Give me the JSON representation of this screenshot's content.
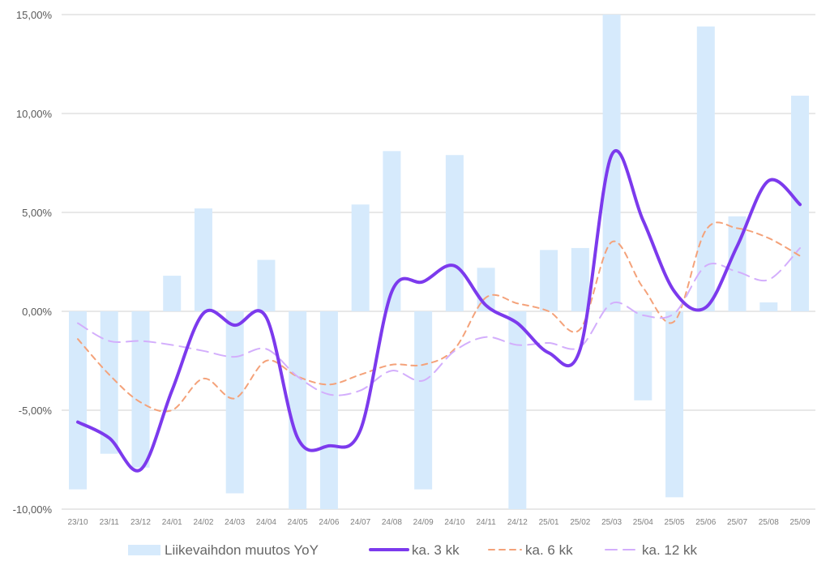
{
  "chart_data": {
    "type": "bar",
    "title": "",
    "xlabel": "",
    "ylabel": "",
    "ylim": [
      -10,
      15
    ],
    "yticks": [
      15,
      10,
      5,
      0,
      -5,
      -10
    ],
    "ytick_labels": [
      "15,00%",
      "10,00%",
      "5,00%",
      "0,00%",
      "-5,00%",
      "-10,00%"
    ],
    "grid": true,
    "legend_position": "bottom",
    "categories": [
      "23/10",
      "23/11",
      "23/12",
      "24/01",
      "24/02",
      "24/03",
      "24/04",
      "24/05",
      "24/06",
      "24/07",
      "24/08",
      "24/09",
      "24/10",
      "24/11",
      "24/12",
      "25/01",
      "25/02",
      "25/03",
      "25/04",
      "25/05",
      "25/06",
      "25/07",
      "25/08",
      "25/09"
    ],
    "series": [
      {
        "name": "Liikevaihdon muutos YoY",
        "kind": "bar",
        "color": "#d6eafc",
        "values": [
          -9.0,
          -7.2,
          -7.9,
          1.8,
          5.2,
          -9.2,
          2.6,
          -10.5,
          -10.5,
          5.4,
          8.1,
          -9.0,
          7.9,
          2.2,
          -10.5,
          3.1,
          3.2,
          15.5,
          -4.5,
          -9.4,
          14.4,
          4.8,
          0.45,
          10.9
        ]
      },
      {
        "name": "ka. 3 kk",
        "kind": "line",
        "style": "solid",
        "color": "#7c3aed",
        "values": [
          -5.6,
          -6.4,
          -8.0,
          -4.0,
          -0.1,
          -0.7,
          -0.3,
          -6.4,
          -6.8,
          -6.0,
          1.0,
          1.5,
          2.3,
          0.3,
          -0.6,
          -2.1,
          -1.9,
          7.9,
          4.6,
          1.0,
          0.2,
          3.3,
          6.6,
          5.4
        ]
      },
      {
        "name": "ka. 6 kk",
        "kind": "line",
        "style": "dashed",
        "color": "#f4a27a",
        "values": [
          -1.4,
          -3.2,
          -4.6,
          -5.0,
          -3.4,
          -4.4,
          -2.5,
          -3.3,
          -3.7,
          -3.2,
          -2.7,
          -2.7,
          -1.9,
          0.7,
          0.4,
          0.0,
          -0.9,
          3.5,
          1.2,
          -0.5,
          4.1,
          4.2,
          3.7,
          2.8
        ]
      },
      {
        "name": "ka. 12 kk",
        "kind": "line",
        "style": "longdash",
        "color": "#d3aefc",
        "values": [
          -0.6,
          -1.5,
          -1.5,
          -1.7,
          -2.0,
          -2.3,
          -1.9,
          -3.3,
          -4.2,
          -4.0,
          -3.0,
          -3.5,
          -2.0,
          -1.3,
          -1.7,
          -1.6,
          -1.8,
          0.4,
          -0.2,
          -0.1,
          2.3,
          2.0,
          1.6,
          3.2
        ]
      }
    ]
  }
}
